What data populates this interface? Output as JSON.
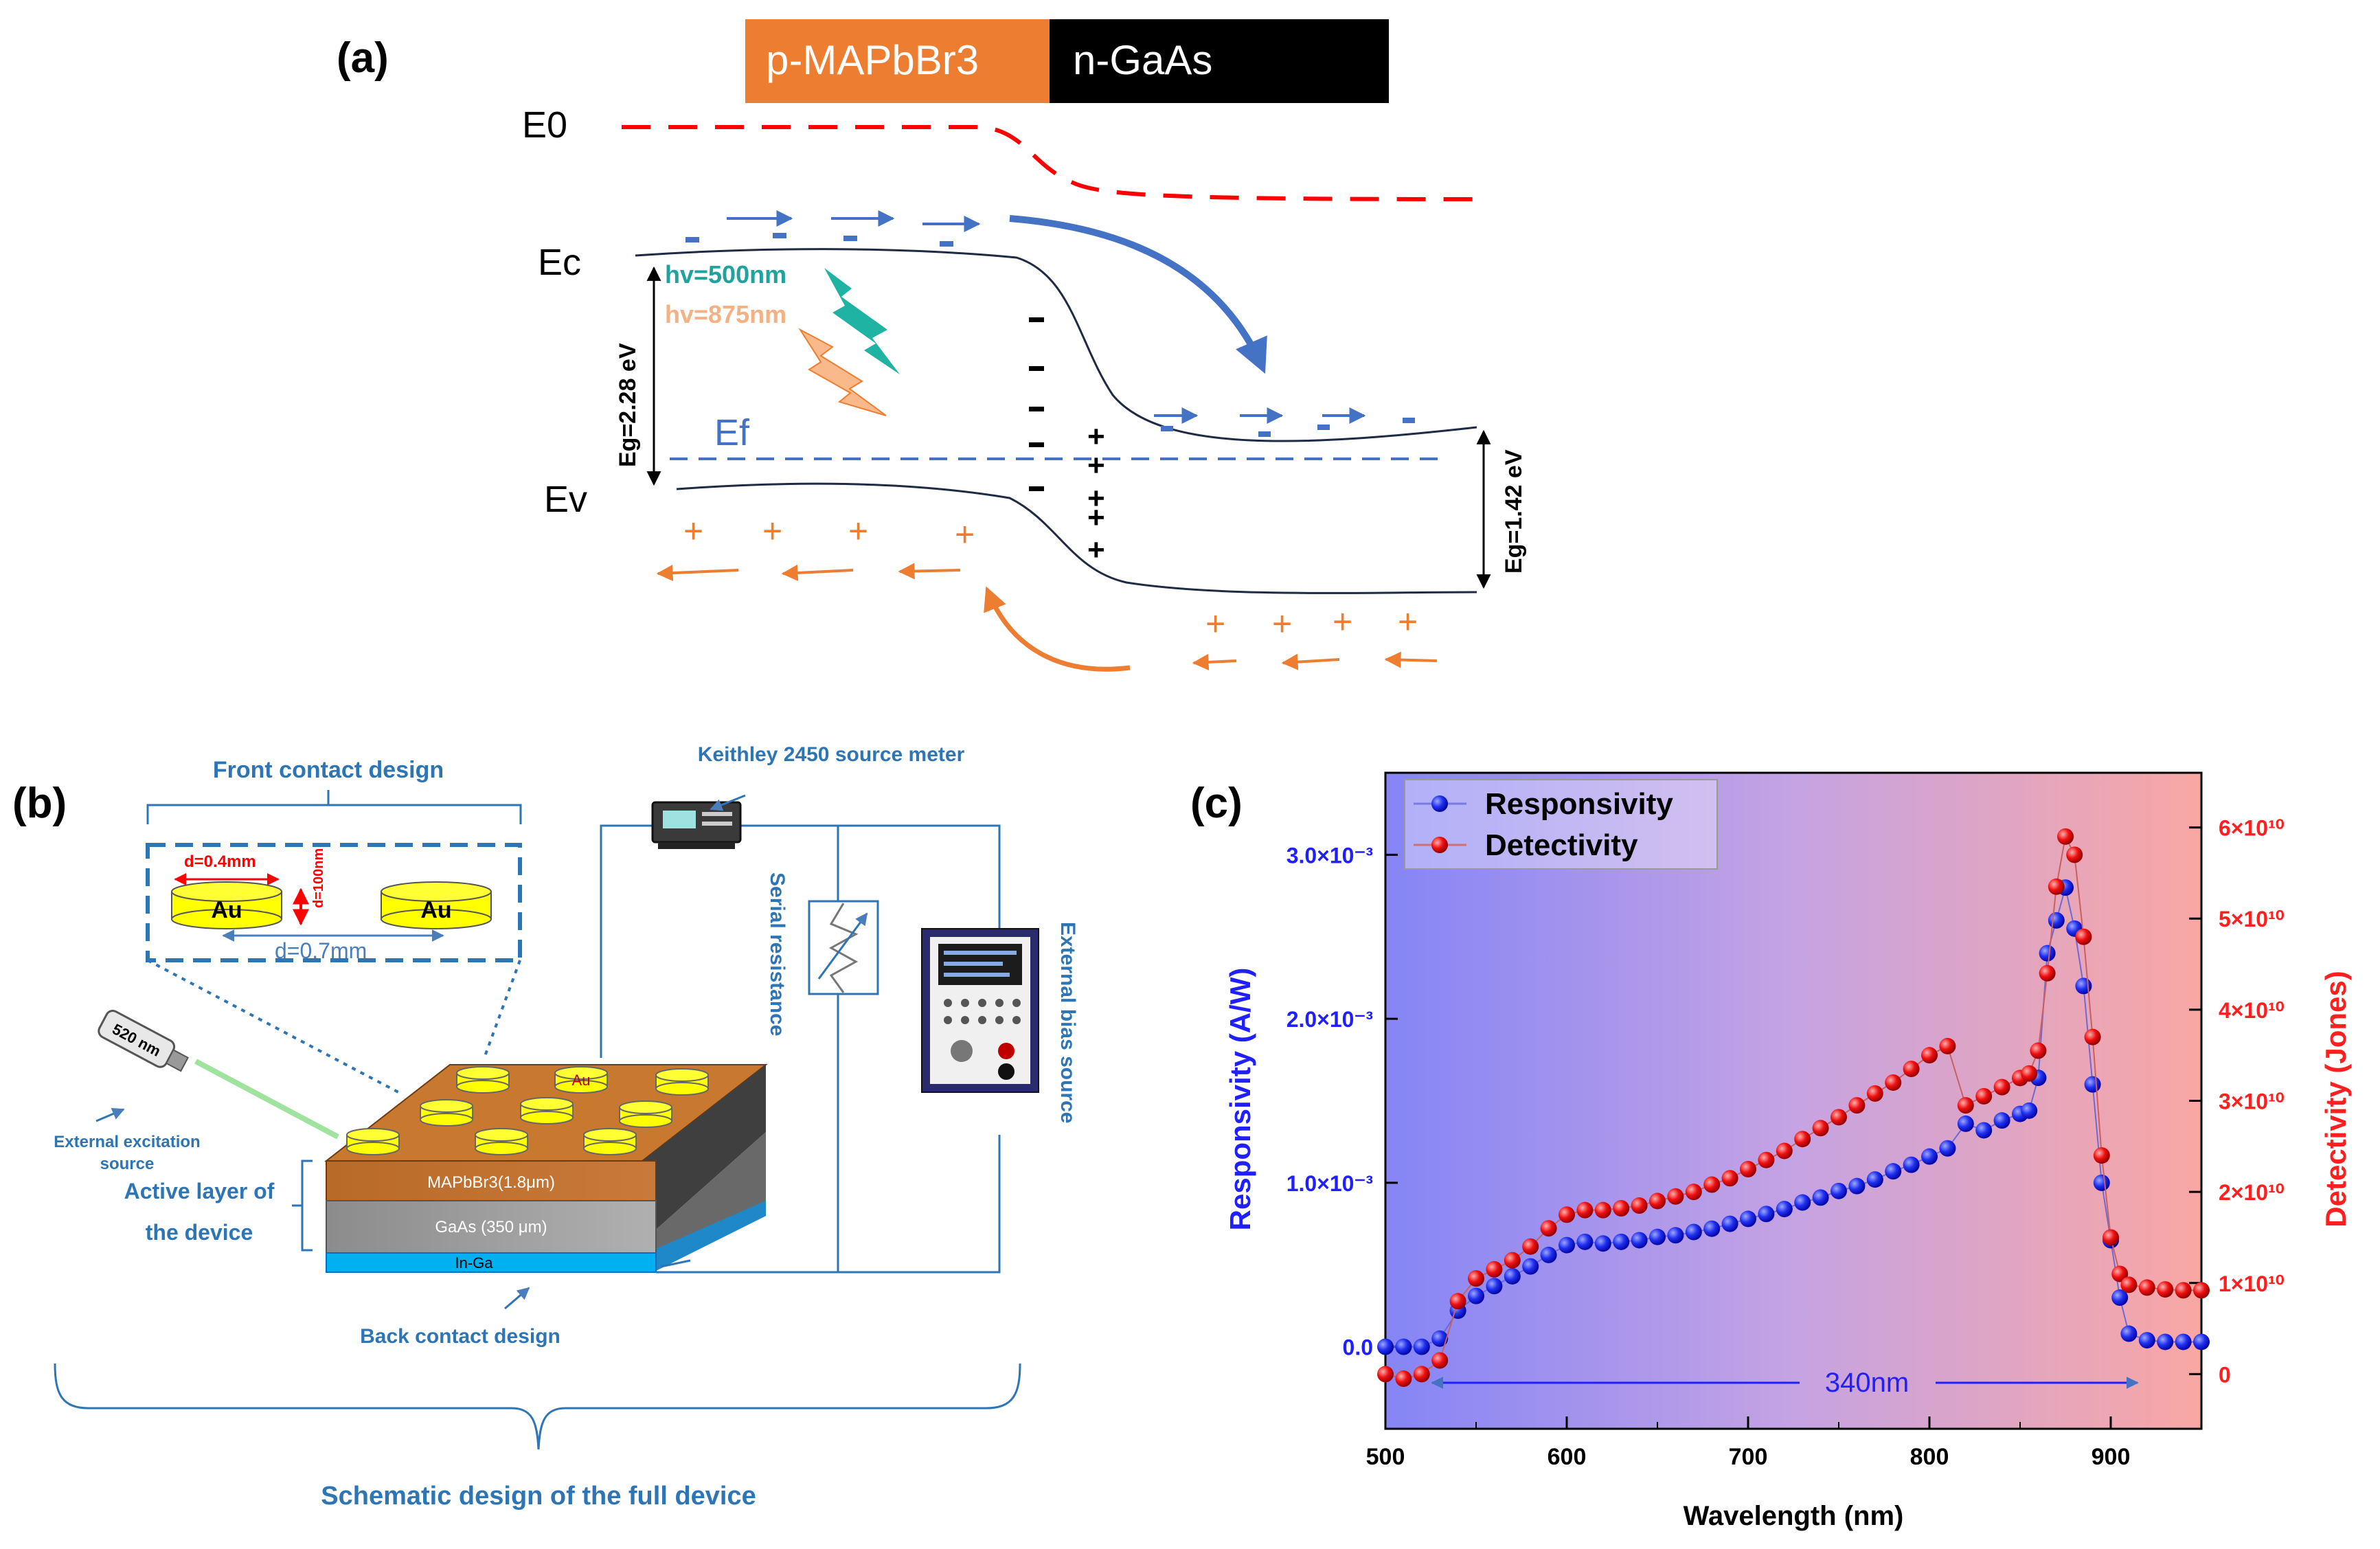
{
  "panel_a": {
    "label": "(a)",
    "p_layer": "p-MAPbBr3",
    "n_layer": "n-GaAs",
    "e0": "E0",
    "ec": "Ec",
    "ef": "Ef",
    "ev": "Ev",
    "hv1": "hv=500nm",
    "hv2": "hv=875nm",
    "eg_left": "Eg=2.28 eV",
    "eg_right": "Eg=1.42 eV",
    "colors": {
      "p_layer": "#ED7D31",
      "n_layer": "#000000",
      "electron": "#4472C4",
      "hole": "#ED7D31",
      "e0_line": "#FF0000",
      "hv1": "#20A39E",
      "hv2": "#F4B183"
    }
  },
  "panel_b": {
    "label": "(b)",
    "front_contact_title": "Front contact design",
    "d_top": "d=0.4mm",
    "thickness": "d=100nm",
    "au": "Au",
    "d_bottom": "d=0.7mm",
    "laser": "520 nm",
    "excitation": "External excitation source",
    "keithley": "Keithley 2450 source meter",
    "serial": "Serial resistance",
    "bias": "External bias source",
    "active_layer": "Active layer of the device",
    "layer_top": "MAPbBr3(1.8μm)",
    "layer_mid": "GaAs (350 μm)",
    "layer_bottom": "In-Ga",
    "back_contact": "Back contact design",
    "schematic": "Schematic design of the full device"
  },
  "panel_c": {
    "label": "(c)"
  },
  "chart_data": {
    "type": "scatter",
    "title": "",
    "xlabel": "Wavelength (nm)",
    "ylabel": "Responsivity (A/W)",
    "y2label": "Detectivity (Jones)",
    "xlim": [
      500,
      950
    ],
    "ylim": [
      -0.0005,
      0.0035
    ],
    "y2lim": [
      -6000000000,
      66000000000
    ],
    "xticks": [
      "500",
      "600",
      "700",
      "800",
      "900"
    ],
    "yticks": [
      "0.0",
      "1.0×10⁻³",
      "2.0×10⁻³",
      "3.0×10⁻³"
    ],
    "y2ticks": [
      "0",
      "1×10¹⁰",
      "2×10¹⁰",
      "3×10¹⁰",
      "4×10¹⁰",
      "5×10¹⁰",
      "6×10¹⁰"
    ],
    "annotation": "340nm",
    "legend": [
      "Responsivity",
      "Detectivity"
    ],
    "series": [
      {
        "name": "Responsivity",
        "axis": "left",
        "color": "#1F1FFF",
        "x": [
          500,
          510,
          520,
          530,
          540,
          550,
          560,
          570,
          580,
          590,
          600,
          610,
          620,
          630,
          640,
          650,
          660,
          670,
          680,
          690,
          700,
          710,
          720,
          730,
          740,
          750,
          760,
          770,
          780,
          790,
          800,
          810,
          820,
          830,
          840,
          850,
          855,
          860,
          865,
          870,
          875,
          880,
          885,
          890,
          895,
          900,
          905,
          910,
          920,
          930,
          940,
          950
        ],
        "values": [
          0.0,
          0.0,
          0.0,
          5e-05,
          0.00022,
          0.00031,
          0.00037,
          0.00043,
          0.00049,
          0.00056,
          0.00062,
          0.00064,
          0.00063,
          0.00064,
          0.00065,
          0.00067,
          0.00068,
          0.0007,
          0.00072,
          0.00075,
          0.00078,
          0.00081,
          0.00084,
          0.00088,
          0.00091,
          0.00095,
          0.00098,
          0.00102,
          0.00107,
          0.00111,
          0.00116,
          0.00121,
          0.00136,
          0.00132,
          0.00138,
          0.00142,
          0.00144,
          0.00164,
          0.0024,
          0.0026,
          0.0028,
          0.00255,
          0.0022,
          0.0016,
          0.001,
          0.00065,
          0.0003,
          8e-05,
          4e-05,
          3e-05,
          3e-05,
          3e-05
        ]
      },
      {
        "name": "Detectivity",
        "axis": "right",
        "color": "#FF1F1F",
        "x": [
          500,
          510,
          520,
          530,
          540,
          550,
          560,
          570,
          580,
          590,
          600,
          610,
          620,
          630,
          640,
          650,
          660,
          670,
          680,
          690,
          700,
          710,
          720,
          730,
          740,
          750,
          760,
          770,
          780,
          790,
          800,
          810,
          820,
          830,
          840,
          850,
          855,
          860,
          865,
          870,
          875,
          880,
          885,
          890,
          895,
          900,
          905,
          910,
          920,
          930,
          940,
          950
        ],
        "values": [
          0,
          -500000000,
          0,
          1500000000,
          8000000000,
          10500000000,
          11500000000,
          12500000000,
          14000000000,
          16000000000,
          17500000000,
          18000000000,
          18000000000,
          18200000000,
          18500000000,
          19000000000,
          19500000000,
          20000000000,
          20800000000,
          21500000000,
          22500000000,
          23500000000,
          24500000000,
          25800000000,
          27000000000,
          28200000000,
          29500000000,
          30800000000,
          32000000000,
          33500000000,
          35000000000,
          36000000000,
          29500000000,
          30500000000,
          31500000000,
          32500000000,
          33000000000,
          35500000000,
          44000000000,
          53500000000,
          59000000000,
          57000000000,
          48000000000,
          37000000000,
          24000000000,
          15000000000,
          11000000000,
          9800000000,
          9500000000,
          9300000000,
          9200000000,
          9200000000
        ]
      }
    ]
  }
}
